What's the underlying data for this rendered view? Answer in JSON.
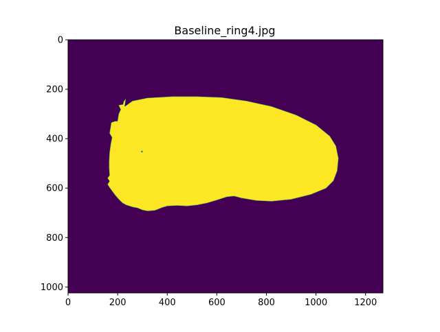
{
  "chart_data": {
    "type": "heatmap",
    "title": "Baseline_ring4.jpg",
    "xlabel": "",
    "ylabel": "",
    "xlim": [
      0,
      1270
    ],
    "ylim": [
      1024,
      0
    ],
    "x_ticks": [
      0,
      200,
      400,
      600,
      800,
      1000,
      1200
    ],
    "y_ticks": [
      0,
      200,
      400,
      600,
      800,
      1000
    ],
    "grid": false,
    "colormap": "viridis",
    "colors": {
      "background": "#440154",
      "mask": "#fde725"
    },
    "mask_outline": [
      [
        230,
        270
      ],
      [
        260,
        248
      ],
      [
        320,
        236
      ],
      [
        420,
        230
      ],
      [
        520,
        230
      ],
      [
        620,
        234
      ],
      [
        720,
        248
      ],
      [
        820,
        270
      ],
      [
        920,
        305
      ],
      [
        1000,
        345
      ],
      [
        1055,
        390
      ],
      [
        1080,
        430
      ],
      [
        1090,
        480
      ],
      [
        1085,
        530
      ],
      [
        1070,
        570
      ],
      [
        1040,
        600
      ],
      [
        980,
        625
      ],
      [
        900,
        645
      ],
      [
        820,
        653
      ],
      [
        760,
        650
      ],
      [
        700,
        640
      ],
      [
        670,
        632
      ],
      [
        640,
        635
      ],
      [
        600,
        648
      ],
      [
        560,
        660
      ],
      [
        520,
        668
      ],
      [
        480,
        672
      ],
      [
        440,
        670
      ],
      [
        400,
        672
      ],
      [
        380,
        678
      ],
      [
        350,
        690
      ],
      [
        320,
        692
      ],
      [
        300,
        688
      ],
      [
        280,
        680
      ],
      [
        260,
        676
      ],
      [
        235,
        668
      ],
      [
        220,
        660
      ],
      [
        205,
        645
      ],
      [
        192,
        630
      ],
      [
        180,
        614
      ],
      [
        168,
        598
      ],
      [
        160,
        585
      ],
      [
        168,
        572
      ],
      [
        160,
        560
      ],
      [
        168,
        548
      ],
      [
        166,
        520
      ],
      [
        166,
        490
      ],
      [
        168,
        455
      ],
      [
        173,
        420
      ],
      [
        178,
        395
      ],
      [
        168,
        378
      ],
      [
        175,
        335
      ],
      [
        190,
        330
      ],
      [
        200,
        330
      ],
      [
        205,
        300
      ],
      [
        213,
        282
      ],
      [
        205,
        265
      ],
      [
        222,
        262
      ],
      [
        225,
        250
      ],
      [
        232,
        240
      ],
      [
        228,
        268
      ]
    ],
    "mask_holes": [
      [
        298,
        452
      ]
    ]
  }
}
